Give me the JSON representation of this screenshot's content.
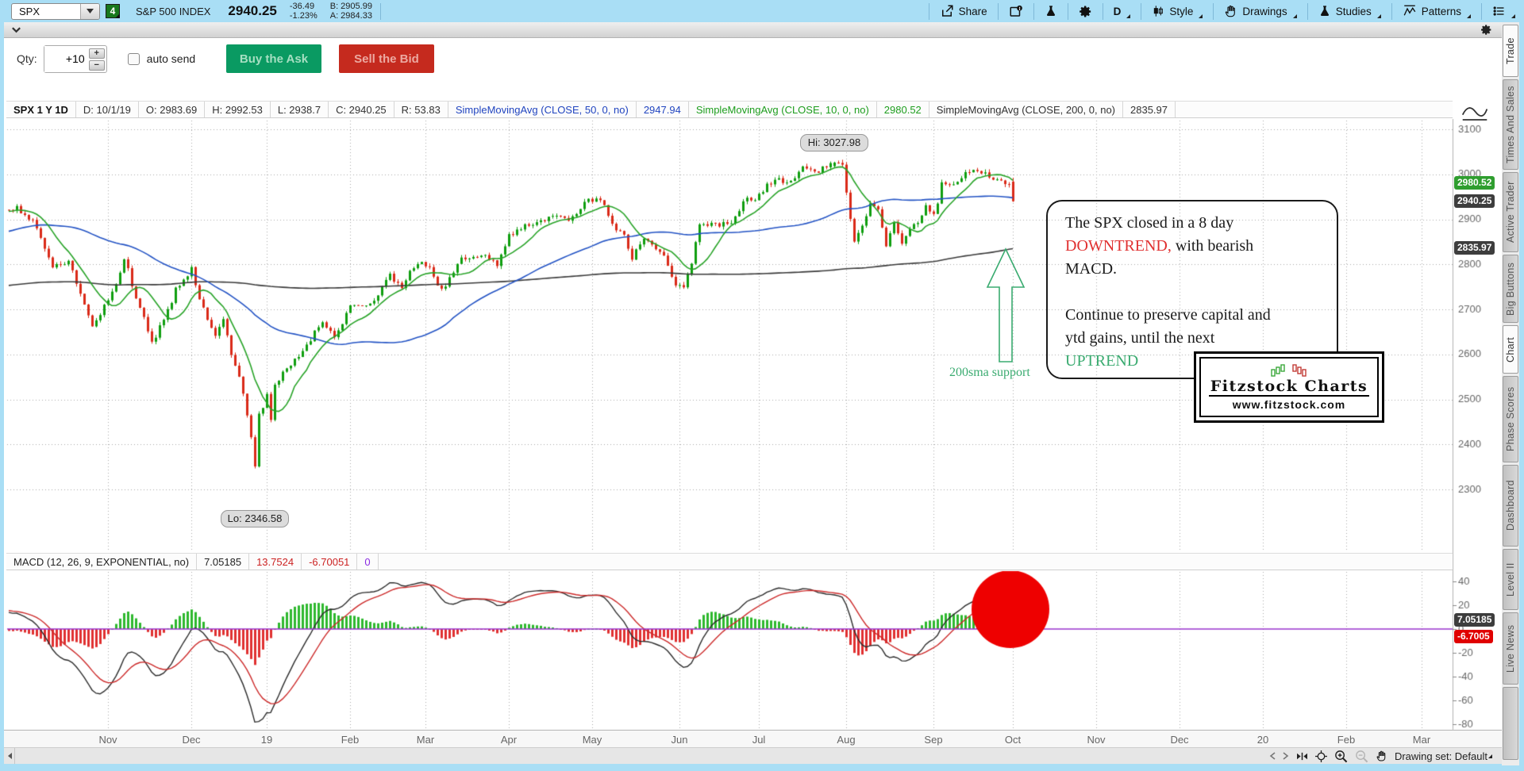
{
  "top_bar": {
    "symbol": "SPX",
    "badge": "4",
    "index_name": "S&P 500 INDEX",
    "last_price": "2940.25",
    "change": "-36.49",
    "change_pct": "-1.23%",
    "bid": "B: 2905.99",
    "ask": "A: 2984.33",
    "share_label": "Share",
    "timeframe_label": "D",
    "style_label": "Style",
    "drawings_label": "Drawings",
    "studies_label": "Studies",
    "patterns_label": "Patterns"
  },
  "trade_bar": {
    "qty_label": "Qty:",
    "qty_value": "+10",
    "auto_send_label": "auto send",
    "buy_label": "Buy the Ask",
    "sell_label": "Sell the Bid"
  },
  "chart_header": {
    "cells": [
      {
        "text": "SPX 1 Y 1D",
        "color": "#111",
        "bold": true
      },
      {
        "text": "D: 10/1/19",
        "color": "#333"
      },
      {
        "text": "O: 2983.69",
        "color": "#333"
      },
      {
        "text": "H: 2992.53",
        "color": "#333"
      },
      {
        "text": "L: 2938.7",
        "color": "#333"
      },
      {
        "text": "C: 2940.25",
        "color": "#333"
      },
      {
        "text": "R: 53.83",
        "color": "#333"
      },
      {
        "text": "SimpleMovingAvg (CLOSE, 50, 0, no)",
        "color": "#2145c0"
      },
      {
        "text": "2947.94",
        "color": "#2145c0"
      },
      {
        "text": "SimpleMovingAvg (CLOSE, 10, 0, no)",
        "color": "#1e9e1e"
      },
      {
        "text": "2980.52",
        "color": "#1e9e1e"
      },
      {
        "text": "SimpleMovingAvg (CLOSE, 200, 0, no)",
        "color": "#333"
      },
      {
        "text": "2835.97",
        "color": "#333"
      }
    ]
  },
  "macd_header": {
    "cells": [
      {
        "text": "MACD (12, 26, 9, EXPONENTIAL, no)",
        "color": "#222"
      },
      {
        "text": "7.05185",
        "color": "#222"
      },
      {
        "text": "13.7524",
        "color": "#cc2222"
      },
      {
        "text": "-6.70051",
        "color": "#cc2222"
      },
      {
        "text": "0",
        "color": "#8a2be2"
      }
    ]
  },
  "annotation": {
    "line1": "The SPX closed in a 8 day",
    "line2_red": "DOWNTREND,",
    "line2_rest": " with bearish",
    "line3": "MACD.",
    "line4": "Continue to preserve capital and",
    "line5": "ytd gains, until the next",
    "line6_green": "UPTREND"
  },
  "sma_note": "200sma support",
  "logo": {
    "title": "Fitzstock Charts",
    "url": "www.fitzstock.com"
  },
  "hi_label_text": "Hi: 3027.98",
  "lo_label_text": "Lo: 2346.58",
  "sidebar": {
    "tabs": [
      {
        "label": "Trade",
        "active": true
      },
      {
        "label": "Times And Sales",
        "active": false
      },
      {
        "label": "Active Trader",
        "active": false
      },
      {
        "label": "Big Buttons",
        "active": false
      },
      {
        "label": "Chart",
        "active": true
      },
      {
        "label": "Phase Scores",
        "active": false
      },
      {
        "label": "Dashboard",
        "active": false
      },
      {
        "label": "Level II",
        "active": false
      },
      {
        "label": "Live News",
        "active": false
      }
    ]
  },
  "bottom_bar": {
    "drawing_set": "Drawing set: Default"
  },
  "chart_data": {
    "type": "candlestick",
    "sub_chart": "macd_histogram",
    "symbol": "SPX",
    "timeframe": "1 Y 1D",
    "last_bar": {
      "date": "10/1/19",
      "open": 2983.69,
      "high": 2992.53,
      "low": 2938.7,
      "close": 2940.25,
      "range": 53.83
    },
    "hi_label": {
      "t": 206,
      "value": 3027.98
    },
    "lo_label": {
      "t": 60,
      "value": 2346.58
    },
    "price_axis": {
      "min": 2300,
      "max": 3100,
      "ticks": [
        3100,
        3000,
        2900,
        2800,
        2700,
        2600,
        2500,
        2400,
        2300
      ]
    },
    "macd_axis": {
      "ticks": [
        40,
        20,
        0,
        -20,
        -40,
        -60,
        -80
      ]
    },
    "price_bubbles": [
      {
        "text": "2980.52",
        "value": 2980.52,
        "bg": "#2f9e2f"
      },
      {
        "text": "2940.25",
        "value": 2940.25,
        "bg": "#3d3d3d"
      },
      {
        "text": "2835.97",
        "value": 2835.97,
        "bg": "#3d3d3d"
      }
    ],
    "macd_bubbles": [
      {
        "text": "7.05185",
        "value": 7.05185,
        "bg": "#3d3d3d"
      },
      {
        "text": "-6.7005",
        "value": -6.7005,
        "bg": "#e00000"
      }
    ],
    "sma_values": {
      "sma10": 2980.52,
      "sma50": 2947.94,
      "sma200": 2835.97
    },
    "macd_values": {
      "macd": 7.05185,
      "signal": 13.7524,
      "histogram": -6.70051,
      "zero": 0
    },
    "months": [
      {
        "label": "Nov",
        "t": 23
      },
      {
        "label": "Dec",
        "t": 44
      },
      {
        "label": "19",
        "t": 63
      },
      {
        "label": "Feb",
        "t": 84
      },
      {
        "label": "Mar",
        "t": 103
      },
      {
        "label": "Apr",
        "t": 124
      },
      {
        "label": "May",
        "t": 145
      },
      {
        "label": "Jun",
        "t": 167
      },
      {
        "label": "Jul",
        "t": 187
      },
      {
        "label": "Aug",
        "t": 209
      },
      {
        "label": "Sep",
        "t": 231
      },
      {
        "label": "Oct",
        "t": 251
      },
      {
        "label": "Nov",
        "t": 272
      },
      {
        "label": "Dec",
        "t": 293
      },
      {
        "label": "20",
        "t": 314
      },
      {
        "label": "Feb",
        "t": 335
      },
      {
        "label": "Mar",
        "t": 354
      }
    ],
    "close_anchors": [
      [
        0,
        2925
      ],
      [
        5,
        2885
      ],
      [
        9,
        2788
      ],
      [
        13,
        2812
      ],
      [
        17,
        2705
      ],
      [
        19,
        2656
      ],
      [
        22,
        2708
      ],
      [
        25,
        2755
      ],
      [
        27,
        2814
      ],
      [
        30,
        2728
      ],
      [
        34,
        2626
      ],
      [
        37,
        2678
      ],
      [
        40,
        2742
      ],
      [
        44,
        2790
      ],
      [
        47,
        2698
      ],
      [
        50,
        2636
      ],
      [
        52,
        2676
      ],
      [
        54,
        2600
      ],
      [
        56,
        2546
      ],
      [
        58,
        2467
      ],
      [
        59,
        2416
      ],
      [
        60,
        2351
      ],
      [
        61,
        2468
      ],
      [
        62,
        2486
      ],
      [
        63,
        2507
      ],
      [
        64,
        2448
      ],
      [
        65,
        2532
      ],
      [
        68,
        2574
      ],
      [
        71,
        2596
      ],
      [
        74,
        2635
      ],
      [
        77,
        2670
      ],
      [
        80,
        2638
      ],
      [
        84,
        2706
      ],
      [
        89,
        2707
      ],
      [
        94,
        2775
      ],
      [
        97,
        2748
      ],
      [
        99,
        2784
      ],
      [
        102,
        2803
      ],
      [
        104,
        2790
      ],
      [
        107,
        2743
      ],
      [
        112,
        2811
      ],
      [
        117,
        2823
      ],
      [
        121,
        2798
      ],
      [
        123,
        2834
      ],
      [
        124,
        2867
      ],
      [
        129,
        2888
      ],
      [
        134,
        2906
      ],
      [
        139,
        2903
      ],
      [
        144,
        2940
      ],
      [
        147,
        2946
      ],
      [
        150,
        2884
      ],
      [
        153,
        2868
      ],
      [
        155,
        2812
      ],
      [
        158,
        2859
      ],
      [
        161,
        2840
      ],
      [
        164,
        2803
      ],
      [
        166,
        2752
      ],
      [
        168,
        2744
      ],
      [
        170,
        2804
      ],
      [
        172,
        2886
      ],
      [
        176,
        2887
      ],
      [
        180,
        2892
      ],
      [
        182,
        2918
      ],
      [
        184,
        2951
      ],
      [
        186,
        2942
      ],
      [
        188,
        2965
      ],
      [
        191,
        2991
      ],
      [
        194,
        2976
      ],
      [
        198,
        3014
      ],
      [
        201,
        3004
      ],
      [
        204,
        3020
      ],
      [
        206,
        3026
      ],
      [
        208,
        3021
      ],
      [
        209,
        2953
      ],
      [
        211,
        2845
      ],
      [
        213,
        2884
      ],
      [
        215,
        2939
      ],
      [
        217,
        2918
      ],
      [
        219,
        2841
      ],
      [
        221,
        2889
      ],
      [
        223,
        2847
      ],
      [
        225,
        2878
      ],
      [
        227,
        2888
      ],
      [
        229,
        2925
      ],
      [
        231,
        2906
      ],
      [
        233,
        2976
      ],
      [
        236,
        2978
      ],
      [
        239,
        3007
      ],
      [
        241,
        3006
      ],
      [
        244,
        3007
      ],
      [
        246,
        2992
      ],
      [
        248,
        2985
      ],
      [
        249,
        2977
      ],
      [
        250,
        2977
      ],
      [
        251,
        2940.25
      ]
    ],
    "preroll_anchors": [
      [
        -210,
        2695
      ],
      [
        -190,
        2762
      ],
      [
        -178,
        2872
      ],
      [
        -170,
        2700
      ],
      [
        -160,
        2585
      ],
      [
        -150,
        2702
      ],
      [
        -140,
        2650
      ],
      [
        -130,
        2678
      ],
      [
        -120,
        2605
      ],
      [
        -110,
        2680
      ],
      [
        -100,
        2712
      ],
      [
        -90,
        2718
      ],
      [
        -80,
        2735
      ],
      [
        -70,
        2748
      ],
      [
        -60,
        2778
      ],
      [
        -50,
        2805
      ],
      [
        -40,
        2832
      ],
      [
        -30,
        2872
      ],
      [
        -20,
        2900
      ],
      [
        -10,
        2912
      ],
      [
        -1,
        2922
      ]
    ],
    "colors": {
      "candle_up": "#0f9e0f",
      "candle_down": "#da2a18",
      "sma10": "#27a327",
      "sma50": "#2353c4",
      "sma200": "#3a3a3a",
      "macd_line": "#2b2b2b",
      "signal_line": "#cc2929",
      "hist_up": "#2eb82e",
      "hist_down": "#e03030",
      "zero_line": "#9933cc",
      "red_circle": "#ee0000",
      "grid": "#a8a8a8",
      "annotation_red": "#e03030",
      "annotation_green": "#3aab70"
    }
  }
}
